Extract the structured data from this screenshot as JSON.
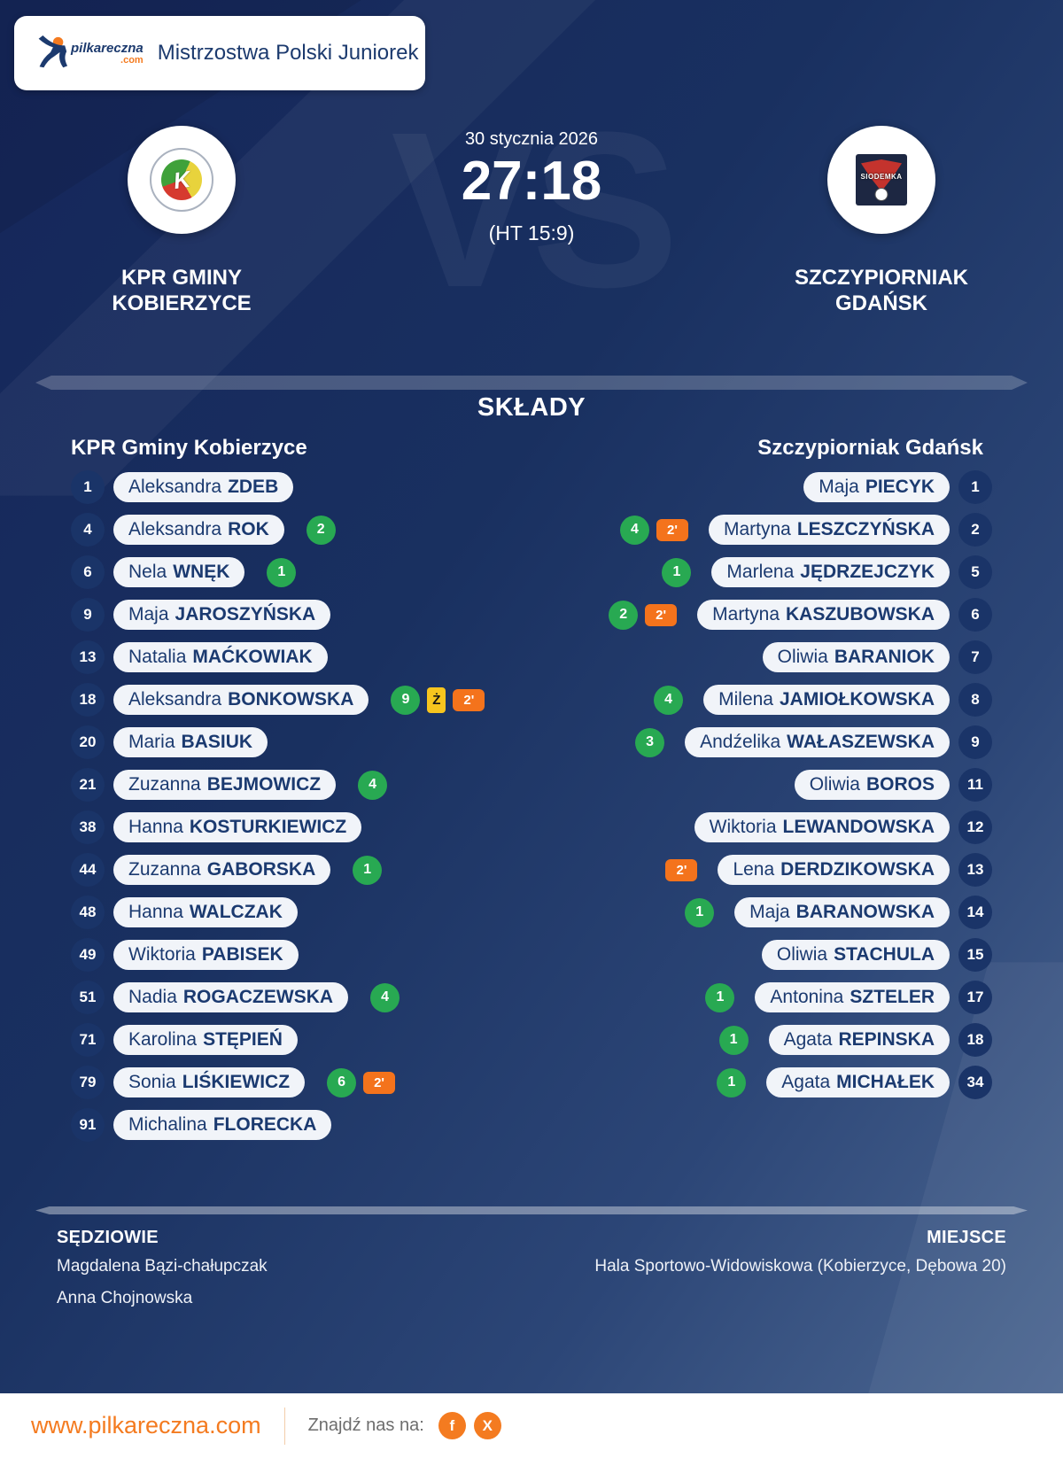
{
  "header": {
    "logo_word": "pilkareczna",
    "logo_tld": ".com",
    "title": "Mistrzostwa Polski Juniorek"
  },
  "match": {
    "date": "30 stycznia 2026",
    "score": "27:18",
    "halftime": "(HT 15:9)",
    "vs_watermark": "VS",
    "home_team": {
      "name_line1": "KPR GMINY",
      "name_line2": "KOBIERZYCE",
      "emblem_letter": "K"
    },
    "away_team": {
      "name_line1": "SZCZYPIORNIAK",
      "name_line2": "GDAŃSK",
      "emblem_text": "SIODEMKA"
    }
  },
  "rosters": {
    "heading": "SKŁADY",
    "home_title": "KPR Gminy Kobierzyce",
    "away_title": "Szczypiorniak Gdańsk",
    "home_players": [
      {
        "number": "1",
        "first": "Aleksandra",
        "last": "ZDEB"
      },
      {
        "number": "4",
        "first": "Aleksandra",
        "last": "ROK",
        "goals": "2"
      },
      {
        "number": "6",
        "first": "Nela",
        "last": "WNĘK",
        "goals": "1"
      },
      {
        "number": "9",
        "first": "Maja",
        "last": "JAROSZYŃSKA"
      },
      {
        "number": "13",
        "first": "Natalia",
        "last": "MAĆKOWIAK"
      },
      {
        "number": "18",
        "first": "Aleksandra",
        "last": "BONKOWSKA",
        "goals": "9",
        "yellow": "Ż",
        "penalty": "2'"
      },
      {
        "number": "20",
        "first": "Maria",
        "last": "BASIUK"
      },
      {
        "number": "21",
        "first": "Zuzanna",
        "last": "BEJMOWICZ",
        "goals": "4"
      },
      {
        "number": "38",
        "first": "Hanna",
        "last": "KOSTURKIEWICZ"
      },
      {
        "number": "44",
        "first": "Zuzanna",
        "last": "GABORSKA",
        "goals": "1"
      },
      {
        "number": "48",
        "first": "Hanna",
        "last": "WALCZAK"
      },
      {
        "number": "49",
        "first": "Wiktoria",
        "last": "PABISEK"
      },
      {
        "number": "51",
        "first": "Nadia",
        "last": "ROGACZEWSKA",
        "goals": "4"
      },
      {
        "number": "71",
        "first": "Karolina",
        "last": "STĘPIEŃ"
      },
      {
        "number": "79",
        "first": "Sonia",
        "last": "LIŚKIEWICZ",
        "goals": "6",
        "penalty": "2'"
      },
      {
        "number": "91",
        "first": "Michalina",
        "last": "FLORECKA"
      }
    ],
    "away_players": [
      {
        "number": "1",
        "first": "Maja",
        "last": "PIECYK"
      },
      {
        "number": "2",
        "first": "Martyna",
        "last": "LESZCZYŃSKA",
        "goals": "4",
        "penalty": "2'"
      },
      {
        "number": "5",
        "first": "Marlena",
        "last": "JĘDRZEJCZYK",
        "goals": "1"
      },
      {
        "number": "6",
        "first": "Martyna",
        "last": "KASZUBOWSKA",
        "goals": "2",
        "penalty": "2'"
      },
      {
        "number": "7",
        "first": "Oliwia",
        "last": "BARANIOK"
      },
      {
        "number": "8",
        "first": "Milena",
        "last": "JAMIOŁKOWSKA",
        "goals": "4"
      },
      {
        "number": "9",
        "first": "Andźelika",
        "last": "WAŁASZEWSKA",
        "goals": "3"
      },
      {
        "number": "11",
        "first": "Oliwia",
        "last": "BOROS"
      },
      {
        "number": "12",
        "first": "Wiktoria",
        "last": "LEWANDOWSKA"
      },
      {
        "number": "13",
        "first": "Lena",
        "last": "DERDZIKOWSKA",
        "penalty": "2'"
      },
      {
        "number": "14",
        "first": "Maja",
        "last": "BARANOWSKA",
        "goals": "1"
      },
      {
        "number": "15",
        "first": "Oliwia",
        "last": "STACHULA"
      },
      {
        "number": "17",
        "first": "Antonina",
        "last": "SZTELER",
        "goals": "1"
      },
      {
        "number": "18",
        "first": "Agata",
        "last": "REPINSKA",
        "goals": "1"
      },
      {
        "number": "34",
        "first": "Agata",
        "last": "MICHAŁEK",
        "goals": "1"
      }
    ]
  },
  "meta": {
    "referees_label": "SĘDZIOWIE",
    "referees": [
      "Magdalena Bązi-chałupczak",
      "Anna Chojnowska"
    ],
    "venue_label": "MIEJSCE",
    "venue": "Hala Sportowo-Widowiskowa (Kobierzyce, Dębowa 20)"
  },
  "site_footer": {
    "url": "www.pilkareczna.com",
    "find_us": "Znajdź nas na:",
    "social": [
      {
        "name": "facebook",
        "label": "f"
      },
      {
        "name": "x-twitter",
        "label": "X"
      }
    ]
  },
  "colors": {
    "navy_background": "#15265a",
    "accent_orange": "#f47b20",
    "goal_green": "#28a952",
    "card_yellow": "#f7c51e",
    "penalty_orange": "#f4731c",
    "pill_background": "#f1f4f9",
    "pill_text": "#1b3a70"
  }
}
